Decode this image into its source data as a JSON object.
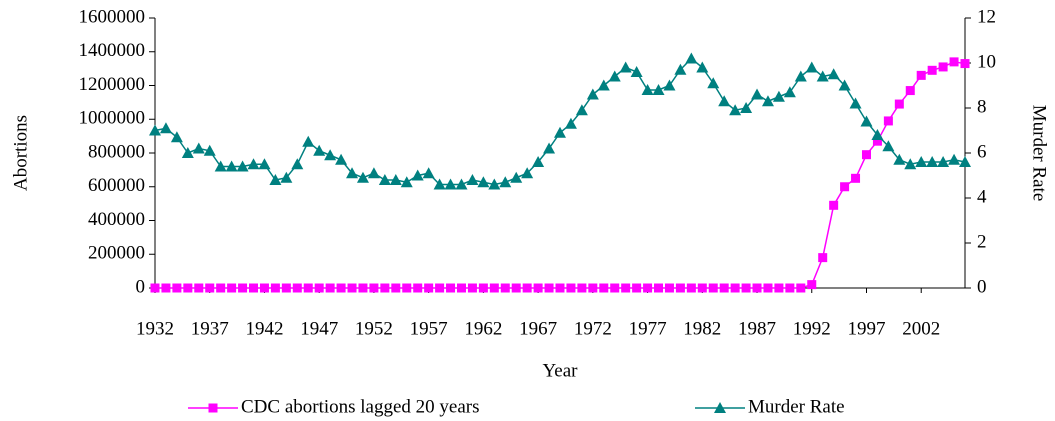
{
  "chart_data": {
    "type": "line",
    "x": [
      1932,
      1933,
      1934,
      1935,
      1936,
      1937,
      1938,
      1939,
      1940,
      1941,
      1942,
      1943,
      1944,
      1945,
      1946,
      1947,
      1948,
      1949,
      1950,
      1951,
      1952,
      1953,
      1954,
      1955,
      1956,
      1957,
      1958,
      1959,
      1960,
      1961,
      1962,
      1963,
      1964,
      1965,
      1966,
      1967,
      1968,
      1969,
      1970,
      1971,
      1972,
      1973,
      1974,
      1975,
      1976,
      1977,
      1978,
      1979,
      1980,
      1981,
      1982,
      1983,
      1984,
      1985,
      1986,
      1987,
      1988,
      1989,
      1990,
      1991,
      1992,
      1993,
      1994,
      1995,
      1996,
      1997,
      1998,
      1999,
      2000,
      2001,
      2002,
      2003,
      2004,
      2005,
      2006
    ],
    "xlim": [
      1932,
      2006
    ],
    "xticks": [
      1932,
      1937,
      1942,
      1947,
      1952,
      1957,
      1962,
      1967,
      1972,
      1977,
      1982,
      1987,
      1992,
      1997,
      2002
    ],
    "xlabel": "Year",
    "ylabel": "Abortions",
    "y2label": "Murder Rate",
    "ylim": [
      0,
      1600000
    ],
    "yticks": [
      0,
      200000,
      400000,
      600000,
      800000,
      1000000,
      1200000,
      1400000,
      1600000
    ],
    "y2lim": [
      0,
      12
    ],
    "y2ticks": [
      0,
      2,
      4,
      6,
      8,
      10,
      12
    ],
    "series": [
      {
        "name": "CDC abortions lagged 20 years",
        "color": "#ff00ff",
        "marker": "square",
        "values": [
          0,
          0,
          0,
          0,
          0,
          0,
          0,
          0,
          0,
          0,
          0,
          0,
          0,
          0,
          0,
          0,
          0,
          0,
          0,
          0,
          0,
          0,
          0,
          0,
          0,
          0,
          0,
          0,
          0,
          0,
          0,
          0,
          0,
          0,
          0,
          0,
          0,
          0,
          0,
          0,
          0,
          0,
          0,
          0,
          0,
          0,
          0,
          0,
          0,
          0,
          0,
          0,
          0,
          0,
          0,
          0,
          0,
          0,
          0,
          0,
          20000,
          180000,
          490000,
          600000,
          650000,
          790000,
          870000,
          990000,
          1090000,
          1170000,
          1260000,
          1290000,
          1310000,
          1340000,
          1330000
        ]
      },
      {
        "name": "Murder Rate",
        "color": "#008080",
        "marker": "triangle",
        "axis": "y2",
        "values": [
          7.0,
          7.1,
          6.7,
          6.0,
          6.2,
          6.1,
          5.4,
          5.4,
          5.4,
          5.5,
          5.5,
          4.8,
          4.9,
          5.5,
          6.5,
          6.1,
          5.9,
          5.7,
          5.1,
          4.9,
          5.1,
          4.8,
          4.8,
          4.7,
          5.0,
          5.1,
          4.6,
          4.6,
          4.6,
          4.8,
          4.7,
          4.6,
          4.7,
          4.9,
          5.1,
          5.6,
          6.2,
          6.9,
          7.3,
          7.9,
          8.6,
          9.0,
          9.4,
          9.8,
          9.6,
          8.8,
          8.8,
          9.0,
          9.7,
          10.2,
          9.8,
          9.1,
          8.3,
          7.9,
          8.0,
          8.6,
          8.3,
          8.5,
          8.7,
          9.4,
          9.8,
          9.4,
          9.5,
          9.0,
          8.2,
          7.4,
          6.8,
          6.3,
          5.7,
          5.5,
          5.6,
          5.6,
          5.6,
          5.7,
          5.6
        ]
      }
    ]
  }
}
